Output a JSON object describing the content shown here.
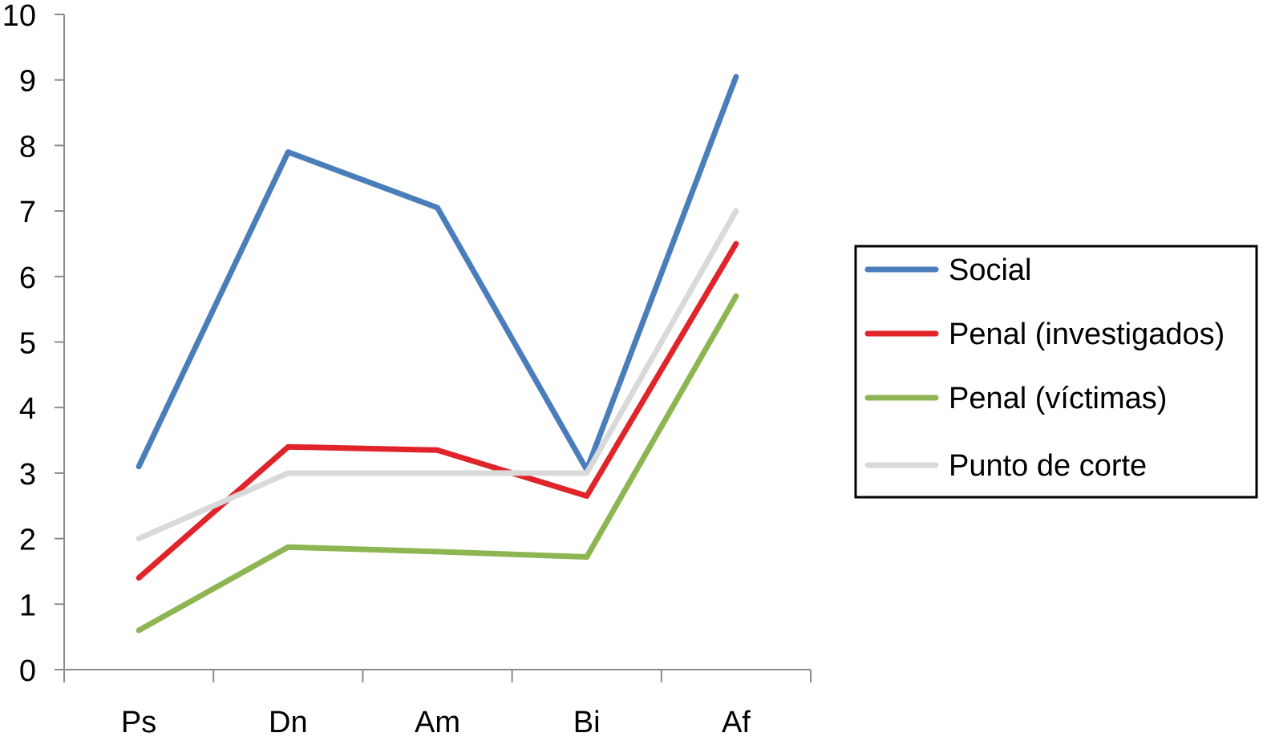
{
  "chart_data": {
    "type": "line",
    "categories": [
      "Ps",
      "Dn",
      "Am",
      "Bi",
      "Af"
    ],
    "ylim": [
      0,
      10
    ],
    "yticks": [
      0,
      1,
      2,
      3,
      4,
      5,
      6,
      7,
      8,
      9,
      10
    ],
    "grid": false,
    "legend_position": "right",
    "series": [
      {
        "name": "Social",
        "color": "#4a7ebb",
        "values": [
          3.1,
          7.9,
          7.05,
          3.05,
          9.05
        ]
      },
      {
        "name": "Penal (investigados)",
        "color": "#e0242a",
        "values": [
          1.4,
          3.4,
          3.35,
          2.65,
          6.5
        ]
      },
      {
        "name": "Penal (víctimas)",
        "color": "#8db552",
        "values": [
          0.6,
          1.87,
          1.8,
          1.72,
          5.7
        ]
      },
      {
        "name": "Punto de corte",
        "color": "#d9d9d9",
        "values": [
          2.0,
          3.0,
          3.0,
          3.0,
          7.0
        ]
      }
    ]
  }
}
